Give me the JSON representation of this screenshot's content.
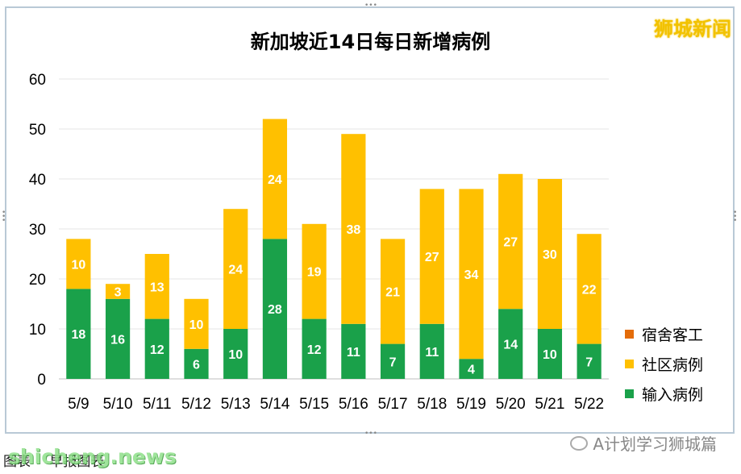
{
  "brand_label": "狮城新闻",
  "footer": {
    "tag_left": "图表",
    "tag_right": "早报图表",
    "watermark": "shicheng.news",
    "wechat_label": "A计划学习狮城篇"
  },
  "colors": {
    "imported": "#1aa14a",
    "community": "#ffc000",
    "dorm": "#e46c0a",
    "grid": "#e6e6e6",
    "axis": "#bfbfbf"
  },
  "chart_data": {
    "type": "bar",
    "stacked": true,
    "title": "新加坡近14日每日新增病例",
    "categories": [
      "5/9",
      "5/10",
      "5/11",
      "5/12",
      "5/13",
      "5/14",
      "5/15",
      "5/16",
      "5/17",
      "5/18",
      "5/19",
      "5/20",
      "5/21",
      "5/22"
    ],
    "series": [
      {
        "name": "输入病例",
        "color": "#1aa14a",
        "values": [
          18,
          16,
          12,
          6,
          10,
          28,
          12,
          11,
          7,
          11,
          4,
          14,
          10,
          7
        ]
      },
      {
        "name": "社区病例",
        "color": "#ffc000",
        "values": [
          10,
          3,
          13,
          10,
          24,
          24,
          19,
          38,
          21,
          27,
          34,
          27,
          30,
          22
        ]
      },
      {
        "name": "宿舍客工",
        "color": "#e46c0a",
        "values": [
          0,
          0,
          0,
          0,
          0,
          0,
          0,
          0,
          0,
          0,
          0,
          0,
          0,
          0
        ]
      }
    ],
    "legend_order": [
      "宿舍客工",
      "社区病例",
      "输入病例"
    ],
    "yticks": [
      0,
      10,
      20,
      30,
      40,
      50,
      60
    ],
    "ylim": [
      0,
      60
    ],
    "grid": true,
    "legend_position": "right"
  }
}
